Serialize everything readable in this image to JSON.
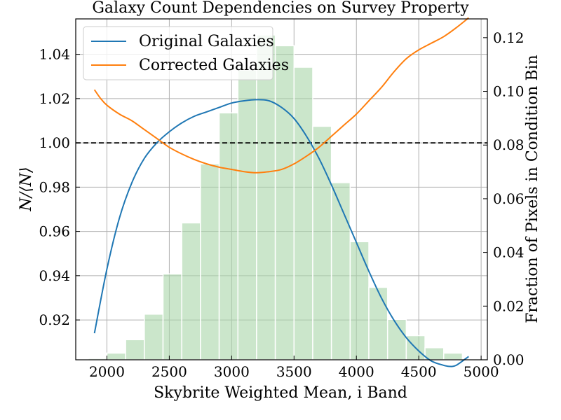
{
  "chart_data": {
    "type": "line",
    "title": "Galaxy Count Dependencies on Survey Property",
    "xlabel": "Skybrite Weighted Mean, i Band",
    "ylabel": "N/⟨N⟩",
    "ylabel_right": "Fraction of Pixels in Condition Bin",
    "xlim": [
      1750,
      5050
    ],
    "ylim": [
      0.902,
      1.056
    ],
    "ylim_right": [
      0.0,
      0.127
    ],
    "x_ticks": [
      2000,
      2500,
      3000,
      3500,
      4000,
      4500,
      5000
    ],
    "y_ticks": [
      0.92,
      0.94,
      0.96,
      0.98,
      1.0,
      1.02,
      1.04
    ],
    "y_ticks_right": [
      0.0,
      0.02,
      0.04,
      0.06,
      0.08,
      0.1,
      0.12
    ],
    "x_tick_labels": [
      "2000",
      "2500",
      "3000",
      "3500",
      "4000",
      "4500",
      "5000"
    ],
    "y_tick_labels": [
      "0.92",
      "0.94",
      "0.96",
      "0.98",
      "1.00",
      "1.02",
      "1.04"
    ],
    "y_tick_labels_right": [
      "0.00",
      "0.02",
      "0.04",
      "0.06",
      "0.08",
      "0.10",
      "0.12"
    ],
    "grid": true,
    "reference_line": {
      "y": 1.0,
      "style": "dashed",
      "color": "#000000"
    },
    "legend_position": "upper-left",
    "series": [
      {
        "name": "Original Galaxies",
        "color": "#1f77b4",
        "x": [
          1900,
          2000,
          2100,
          2200,
          2300,
          2400,
          2500,
          2600,
          2700,
          2800,
          2900,
          3000,
          3100,
          3200,
          3300,
          3400,
          3500,
          3600,
          3700,
          3800,
          3900,
          4000,
          4100,
          4200,
          4300,
          4400,
          4500,
          4600,
          4700,
          4750,
          4800,
          4900
        ],
        "y": [
          0.914,
          0.943,
          0.966,
          0.982,
          0.993,
          1.0,
          1.005,
          1.009,
          1.012,
          1.014,
          1.016,
          1.018,
          1.019,
          1.0195,
          1.019,
          1.016,
          1.011,
          1.003,
          0.993,
          0.981,
          0.968,
          0.955,
          0.942,
          0.93,
          0.92,
          0.912,
          0.906,
          0.9015,
          0.8995,
          0.899,
          0.8995,
          0.9035
        ]
      },
      {
        "name": "Corrected Galaxies",
        "color": "#ff7f0e",
        "x": [
          1900,
          1950,
          2000,
          2100,
          2200,
          2300,
          2400,
          2500,
          2600,
          2700,
          2800,
          2900,
          3000,
          3100,
          3200,
          3300,
          3400,
          3500,
          3600,
          3700,
          3800,
          3900,
          4000,
          4100,
          4200,
          4300,
          4400,
          4500,
          4600,
          4700,
          4800,
          4900
        ],
        "y": [
          1.024,
          1.02,
          1.017,
          1.013,
          1.01,
          1.006,
          1.002,
          0.998,
          0.995,
          0.9925,
          0.9905,
          0.989,
          0.988,
          0.987,
          0.9865,
          0.987,
          0.988,
          0.9905,
          0.994,
          0.998,
          1.003,
          1.008,
          1.013,
          1.019,
          1.025,
          1.032,
          1.038,
          1.042,
          1.045,
          1.048,
          1.052,
          1.0565
        ]
      }
    ],
    "histogram": {
      "name": "Fraction of pixels",
      "color": "#a9d6a9",
      "bin_edges": [
        1850,
        2000,
        2150,
        2300,
        2450,
        2600,
        2750,
        2900,
        3050,
        3200,
        3350,
        3500,
        3650,
        3800,
        3950,
        4100,
        4250,
        4400,
        4550,
        4700,
        4850,
        5000
      ],
      "values": [
        0.0005,
        0.0025,
        0.0075,
        0.017,
        0.032,
        0.051,
        0.073,
        0.092,
        0.108,
        0.121,
        0.117,
        0.109,
        0.087,
        0.066,
        0.044,
        0.027,
        0.015,
        0.009,
        0.0045,
        0.0025,
        0.0
      ]
    }
  }
}
